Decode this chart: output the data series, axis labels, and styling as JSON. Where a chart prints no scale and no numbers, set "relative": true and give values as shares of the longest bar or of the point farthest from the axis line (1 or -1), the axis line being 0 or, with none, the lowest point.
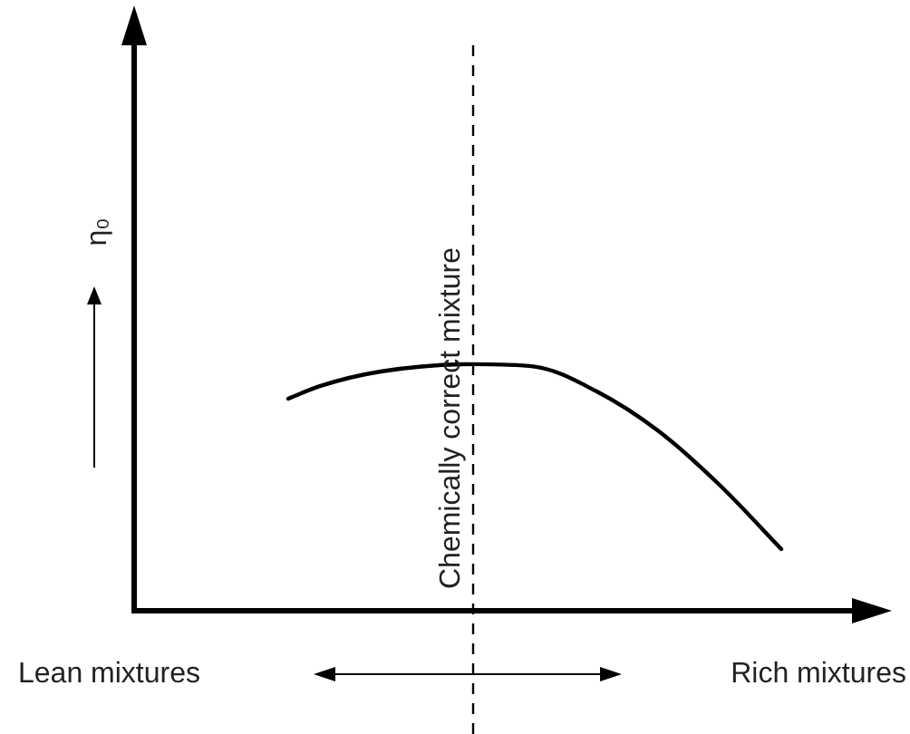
{
  "chart_data": {
    "type": "line",
    "relative": true,
    "ylabel": "η₀",
    "categories": [
      null,
      null,
      null,
      null,
      null,
      null,
      null,
      null,
      null,
      null,
      null,
      null,
      null,
      null,
      null,
      null,
      null,
      null,
      null,
      null,
      null,
      null,
      null,
      null,
      null
    ],
    "series": [
      {
        "color": "#000000",
        "values": [
          null,
          null,
          null,
          null,
          null,
          0.86,
          0.91,
          null,
          0.97,
          null,
          null,
          1.0,
          null,
          0.99,
          null,
          0.89,
          null,
          0.73,
          null,
          0.51,
          null,
          0.25,
          null,
          null,
          null
        ]
      }
    ],
    "annotations": [
      "Lean mixtures",
      "Rich mixtures",
      "Chemically correct mixture"
    ],
    "marker": "none",
    "line_style": "solid"
  }
}
